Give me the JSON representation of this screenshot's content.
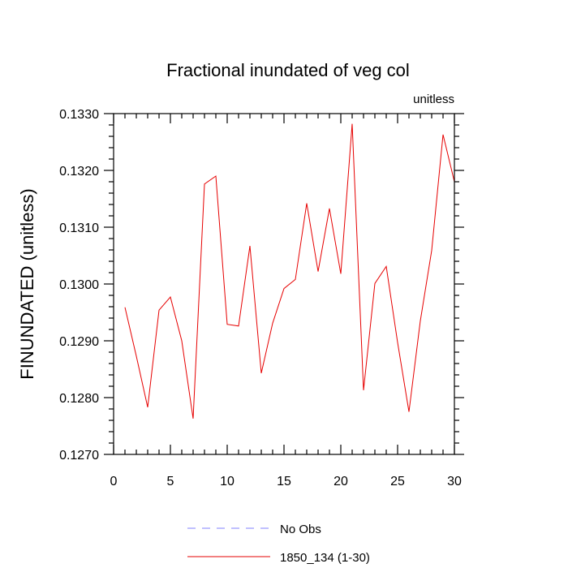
{
  "chart_data": {
    "type": "line",
    "title": "Fractional inundated of veg col",
    "units_label": "unitless",
    "ylabel": "FINUNDATED  (unitless)",
    "xlabel": "",
    "xlim": [
      0,
      30
    ],
    "ylim": [
      0.127,
      0.133
    ],
    "x_ticks": [
      0,
      5,
      10,
      15,
      20,
      25,
      30
    ],
    "y_ticks": [
      0.127,
      0.128,
      0.129,
      0.13,
      0.131,
      0.132,
      0.133
    ],
    "y_tick_labels": [
      "0.1270",
      "0.1280",
      "0.1290",
      "0.1300",
      "0.1310",
      "0.1320",
      "0.1330"
    ],
    "grid": false,
    "legend_position": "bottom",
    "x": [
      1,
      2,
      3,
      4,
      5,
      6,
      7,
      8,
      9,
      10,
      11,
      12,
      13,
      14,
      15,
      16,
      17,
      18,
      19,
      20,
      21,
      22,
      23,
      24,
      25,
      26,
      27,
      28,
      29,
      30
    ],
    "series": [
      {
        "name": "1850_134 (1-30)",
        "color": "#e60000",
        "style": "solid",
        "values": [
          0.12959,
          0.12873,
          0.12783,
          0.12954,
          0.12977,
          0.129,
          0.12763,
          0.13176,
          0.1319,
          0.12929,
          0.12926,
          0.13067,
          0.12843,
          0.12931,
          0.12992,
          0.13008,
          0.13142,
          0.13022,
          0.13133,
          0.13018,
          0.13282,
          0.12813,
          0.13001,
          0.13031,
          0.12897,
          0.12775,
          0.12935,
          0.13059,
          0.13263,
          0.1318
        ]
      }
    ],
    "legend": [
      {
        "label": "No Obs",
        "color": "#8080ff",
        "style": "dashed"
      },
      {
        "label": "1850_134 (1-30)",
        "color": "#e60000",
        "style": "solid"
      }
    ]
  }
}
